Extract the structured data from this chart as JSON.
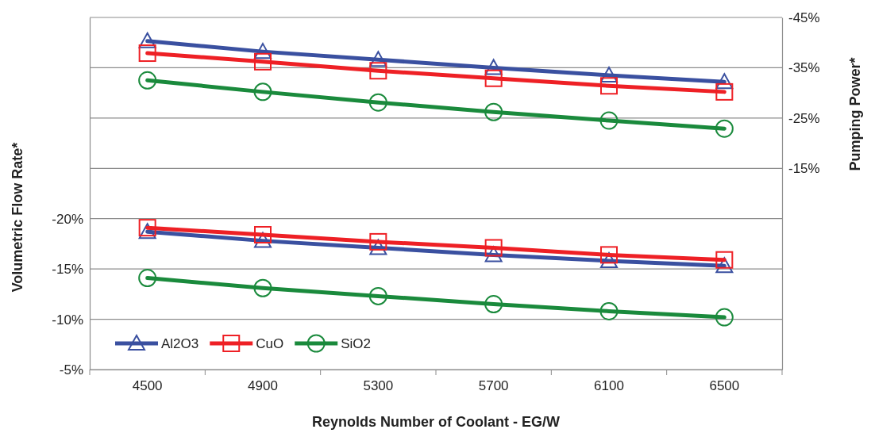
{
  "chart_data": {
    "type": "line",
    "xlabel": "Reynolds Number of Coolant - EG/W",
    "ylabel": "Volumetric Flow Rate*",
    "y2label": "Pumping Power*",
    "categories": [
      "4500",
      "4900",
      "5300",
      "5700",
      "6100",
      "6500"
    ],
    "ylim": [
      -5,
      -40
    ],
    "yticks": [
      {
        "value": -5,
        "label": "-5%"
      },
      {
        "value": -10,
        "label": "-10%"
      },
      {
        "value": -15,
        "label": "-15%"
      },
      {
        "value": -20,
        "label": "-20%"
      },
      {
        "value": -25,
        "label": null
      },
      {
        "value": -30,
        "label": null
      },
      {
        "value": -35,
        "label": null
      },
      {
        "value": -40,
        "label": null
      }
    ],
    "y2lim": [
      25,
      -45
    ],
    "y2ticks": [
      {
        "value": -15,
        "label": "-15%"
      },
      {
        "value": -25,
        "label": "-25%"
      },
      {
        "value": -35,
        "label": "-35%"
      },
      {
        "value": -45,
        "label": "-45%"
      }
    ],
    "grid": "y",
    "legend": "bottom left",
    "series": [
      {
        "name": "Al2O3",
        "color": "#3a50a0",
        "marker": "triangle",
        "values": [
          -18.7,
          -17.8,
          -17.1,
          -16.4,
          -15.8,
          -15.3
        ]
      },
      {
        "name": "CuO",
        "color": "#ee2025",
        "marker": "square",
        "values": [
          -19.1,
          -18.4,
          -17.7,
          -17.1,
          -16.4,
          -15.9
        ]
      },
      {
        "name": "SiO2",
        "color": "#1a8a3c",
        "marker": "circle",
        "values": [
          -14.1,
          -13.1,
          -12.3,
          -11.5,
          -10.8,
          -10.2
        ]
      },
      {
        "color": "#3a50a0",
        "marker": "triangle",
        "axis": "y2",
        "values": [
          -40.3,
          -38.2,
          -36.6,
          -35,
          -33.5,
          -32.2
        ]
      },
      {
        "color": "#ee2025",
        "marker": "square",
        "axis": "y2",
        "values": [
          -37.9,
          -36.2,
          -34.4,
          -32.9,
          -31.4,
          -30.2
        ]
      },
      {
        "color": "#1a8a3c",
        "marker": "circle",
        "axis": "y2",
        "values": [
          -32.5,
          -30.2,
          -28.1,
          -26.2,
          -24.5,
          -22.9
        ]
      }
    ]
  }
}
